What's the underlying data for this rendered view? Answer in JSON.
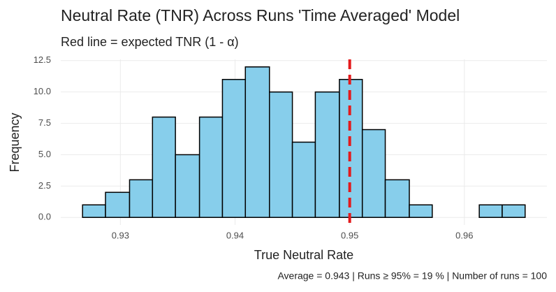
{
  "chart_data": {
    "type": "histogram",
    "title": "Neutral Rate (TNR) Across Runs 'Time Averaged' Model",
    "subtitle": "Red line = expected TNR (1 - α)",
    "x_label": "True Neutral Rate",
    "y_label": "Frequency",
    "caption": "Average = 0.943 | Runs ≥ 95% = 19 % | Number of runs = 100",
    "bins": [
      0.9267,
      0.9287,
      0.9308,
      0.9328,
      0.9348,
      0.9369,
      0.9389,
      0.9409,
      0.943,
      0.945,
      0.947,
      0.9491,
      0.9511,
      0.9531,
      0.9552,
      0.9572,
      0.9592,
      0.9613,
      0.9633,
      0.9653
    ],
    "values": [
      1,
      2,
      3,
      8,
      5,
      8,
      11,
      12,
      10,
      6,
      10,
      11,
      7,
      3,
      1,
      0,
      0,
      1,
      1
    ],
    "color": "#87ceeb",
    "edge_color": "#000000",
    "vline": 0.95,
    "vline_color": "#e31a1c",
    "xlim": [
      0.9248,
      0.9672
    ],
    "ylim": [
      -0.6,
      12.6
    ],
    "xticks": [
      0.93,
      0.94,
      0.95,
      0.96
    ],
    "yticks": [
      {
        "value": 0,
        "label": "0.0"
      },
      2.5,
      {
        "value": 5,
        "label": "5.0"
      },
      7.5,
      {
        "value": 10,
        "label": "10.0"
      },
      12.5
    ],
    "grid": true
  }
}
